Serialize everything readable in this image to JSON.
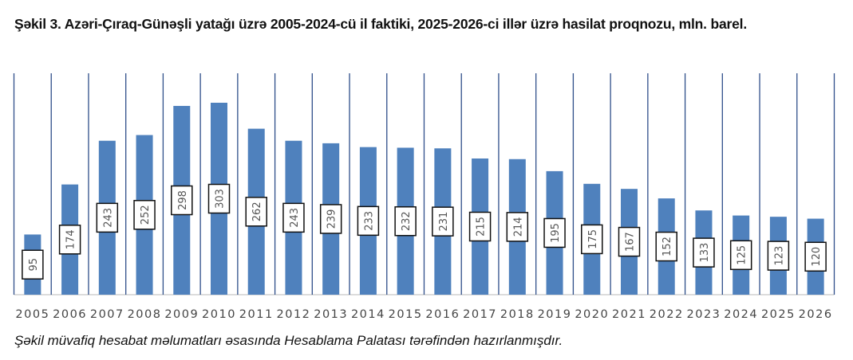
{
  "chart_data": {
    "type": "bar",
    "title": "Şəkil 3. Azəri-Çıraq-Günəşli yatağı üzrə 2005-2024-cü il faktiki, 2025-2026-ci illər üzrə hasilat proqnozu, mln. barel.",
    "categories": [
      "2005",
      "2006",
      "2007",
      "2008",
      "2009",
      "2010",
      "2011",
      "2012",
      "2013",
      "2014",
      "2015",
      "2016",
      "2017",
      "2018",
      "2019",
      "2020",
      "2021",
      "2022",
      "2023",
      "2024",
      "2025",
      "2026"
    ],
    "values": [
      95,
      174,
      243,
      252,
      298,
      303,
      262,
      243,
      239,
      233,
      232,
      231,
      215,
      214,
      195,
      175,
      167,
      152,
      133,
      125,
      123,
      120
    ],
    "xlabel": "",
    "ylabel": "",
    "ylim": [
      0,
      350
    ],
    "grid": "vertical lines between categories",
    "legend": "none",
    "colors": {
      "bar": "#4f81bd",
      "gridline": "#2f4f8a",
      "axis": "#d0d0d0"
    }
  },
  "source_note": "Şəkil müvafiq hesabat məlumatları əsasında Hesablama Palatası tərəfindən hazırlanmışdır."
}
